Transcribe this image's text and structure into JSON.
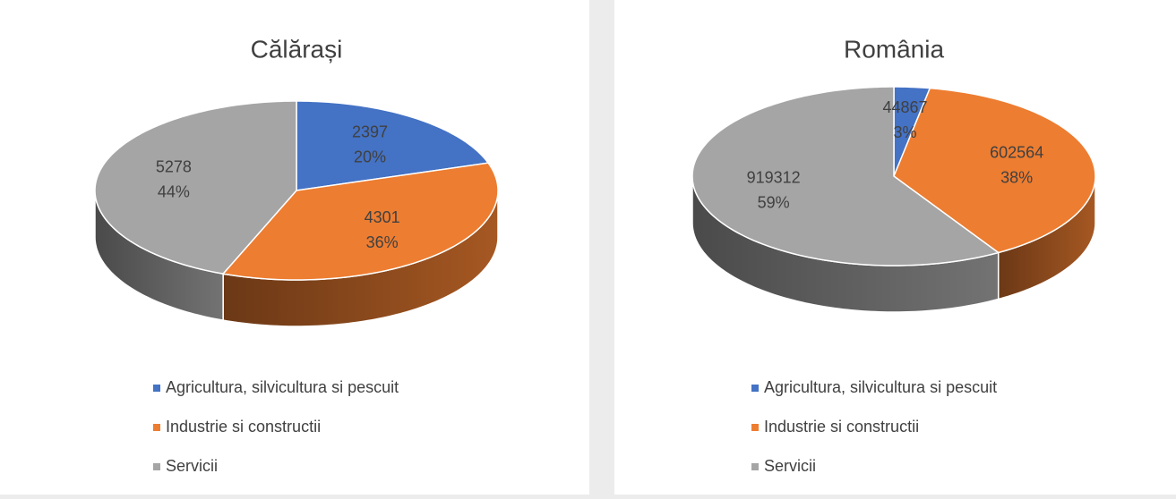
{
  "chart_data": [
    {
      "type": "pie3d",
      "title": "Călărași",
      "categories": [
        "Agricultura, silvicultura si pescuit",
        "Industrie si constructii",
        "Servicii"
      ],
      "values": [
        2397,
        4301,
        5278
      ],
      "percent_labels": [
        "20%",
        "36%",
        "44%"
      ],
      "colors": [
        "#4472c4",
        "#ed7d31",
        "#a5a5a5"
      ]
    },
    {
      "type": "pie3d",
      "title": "România",
      "categories": [
        "Agricultura, silvicultura si pescuit",
        "Industrie si constructii",
        "Servicii"
      ],
      "values": [
        44867,
        602564,
        919312
      ],
      "percent_labels": [
        "3%",
        "38%",
        "59%"
      ],
      "colors": [
        "#4472c4",
        "#ed7d31",
        "#a5a5a5"
      ]
    }
  ]
}
